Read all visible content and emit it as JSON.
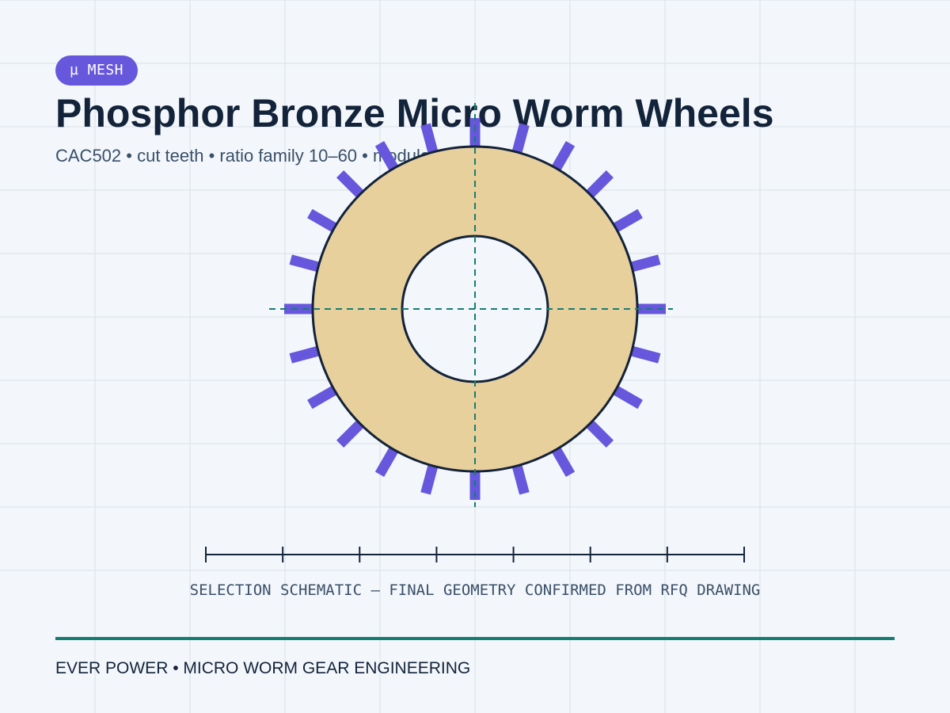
{
  "badge": {
    "label": "µ MESH"
  },
  "header": {
    "title": "Phosphor Bronze Micro Worm Wheels",
    "subtitle": "CAC502 • cut teeth • ratio family 10–60 • module 0.2–0.5"
  },
  "wheel": {
    "teeth": 24,
    "colors": {
      "body": "#e8d09c",
      "outline": "#13233a",
      "teeth": "#6757dd",
      "centerline": "#157d74",
      "bore": "#f3f7fb"
    }
  },
  "scale": {
    "divisions": 7
  },
  "caption": "SELECTION SCHEMATIC — FINAL GEOMETRY CONFIRMED FROM RFQ DRAWING",
  "footer": {
    "text": "EVER POWER • MICRO WORM GEAR ENGINEERING"
  },
  "colors": {
    "background": "#f3f7fb",
    "grid": "#e1e7ee",
    "accent": "#6757dd",
    "rule": "#157d74",
    "text": "#13233a"
  }
}
